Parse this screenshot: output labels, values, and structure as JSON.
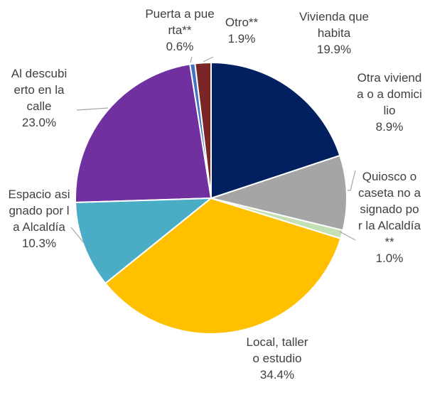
{
  "chart_data": {
    "type": "pie",
    "categories": [
      "Vivienda que habita",
      "Otra vivienda o a domicilio",
      "Quiosco o caseta no asignado por la Alcaldía**",
      "Local, taller o estudio",
      "Espacio asignado por la Alcaldía",
      "Al descubierto en la calle",
      "Puerta a puerta**",
      "Otro**"
    ],
    "values": [
      19.9,
      8.9,
      1.0,
      34.4,
      10.3,
      23.0,
      0.6,
      1.9
    ],
    "value_labels": [
      "19.9%",
      "8.9%",
      "1.0%",
      "34.4%",
      "10.3%",
      "23.0%",
      "0.6%",
      "1.9%"
    ],
    "colors": [
      "#002060",
      "#a5a5a5",
      "#c5e0b4",
      "#ffc000",
      "#4bacc6",
      "#7030a0",
      "#4472c4",
      "#7b2626"
    ]
  }
}
